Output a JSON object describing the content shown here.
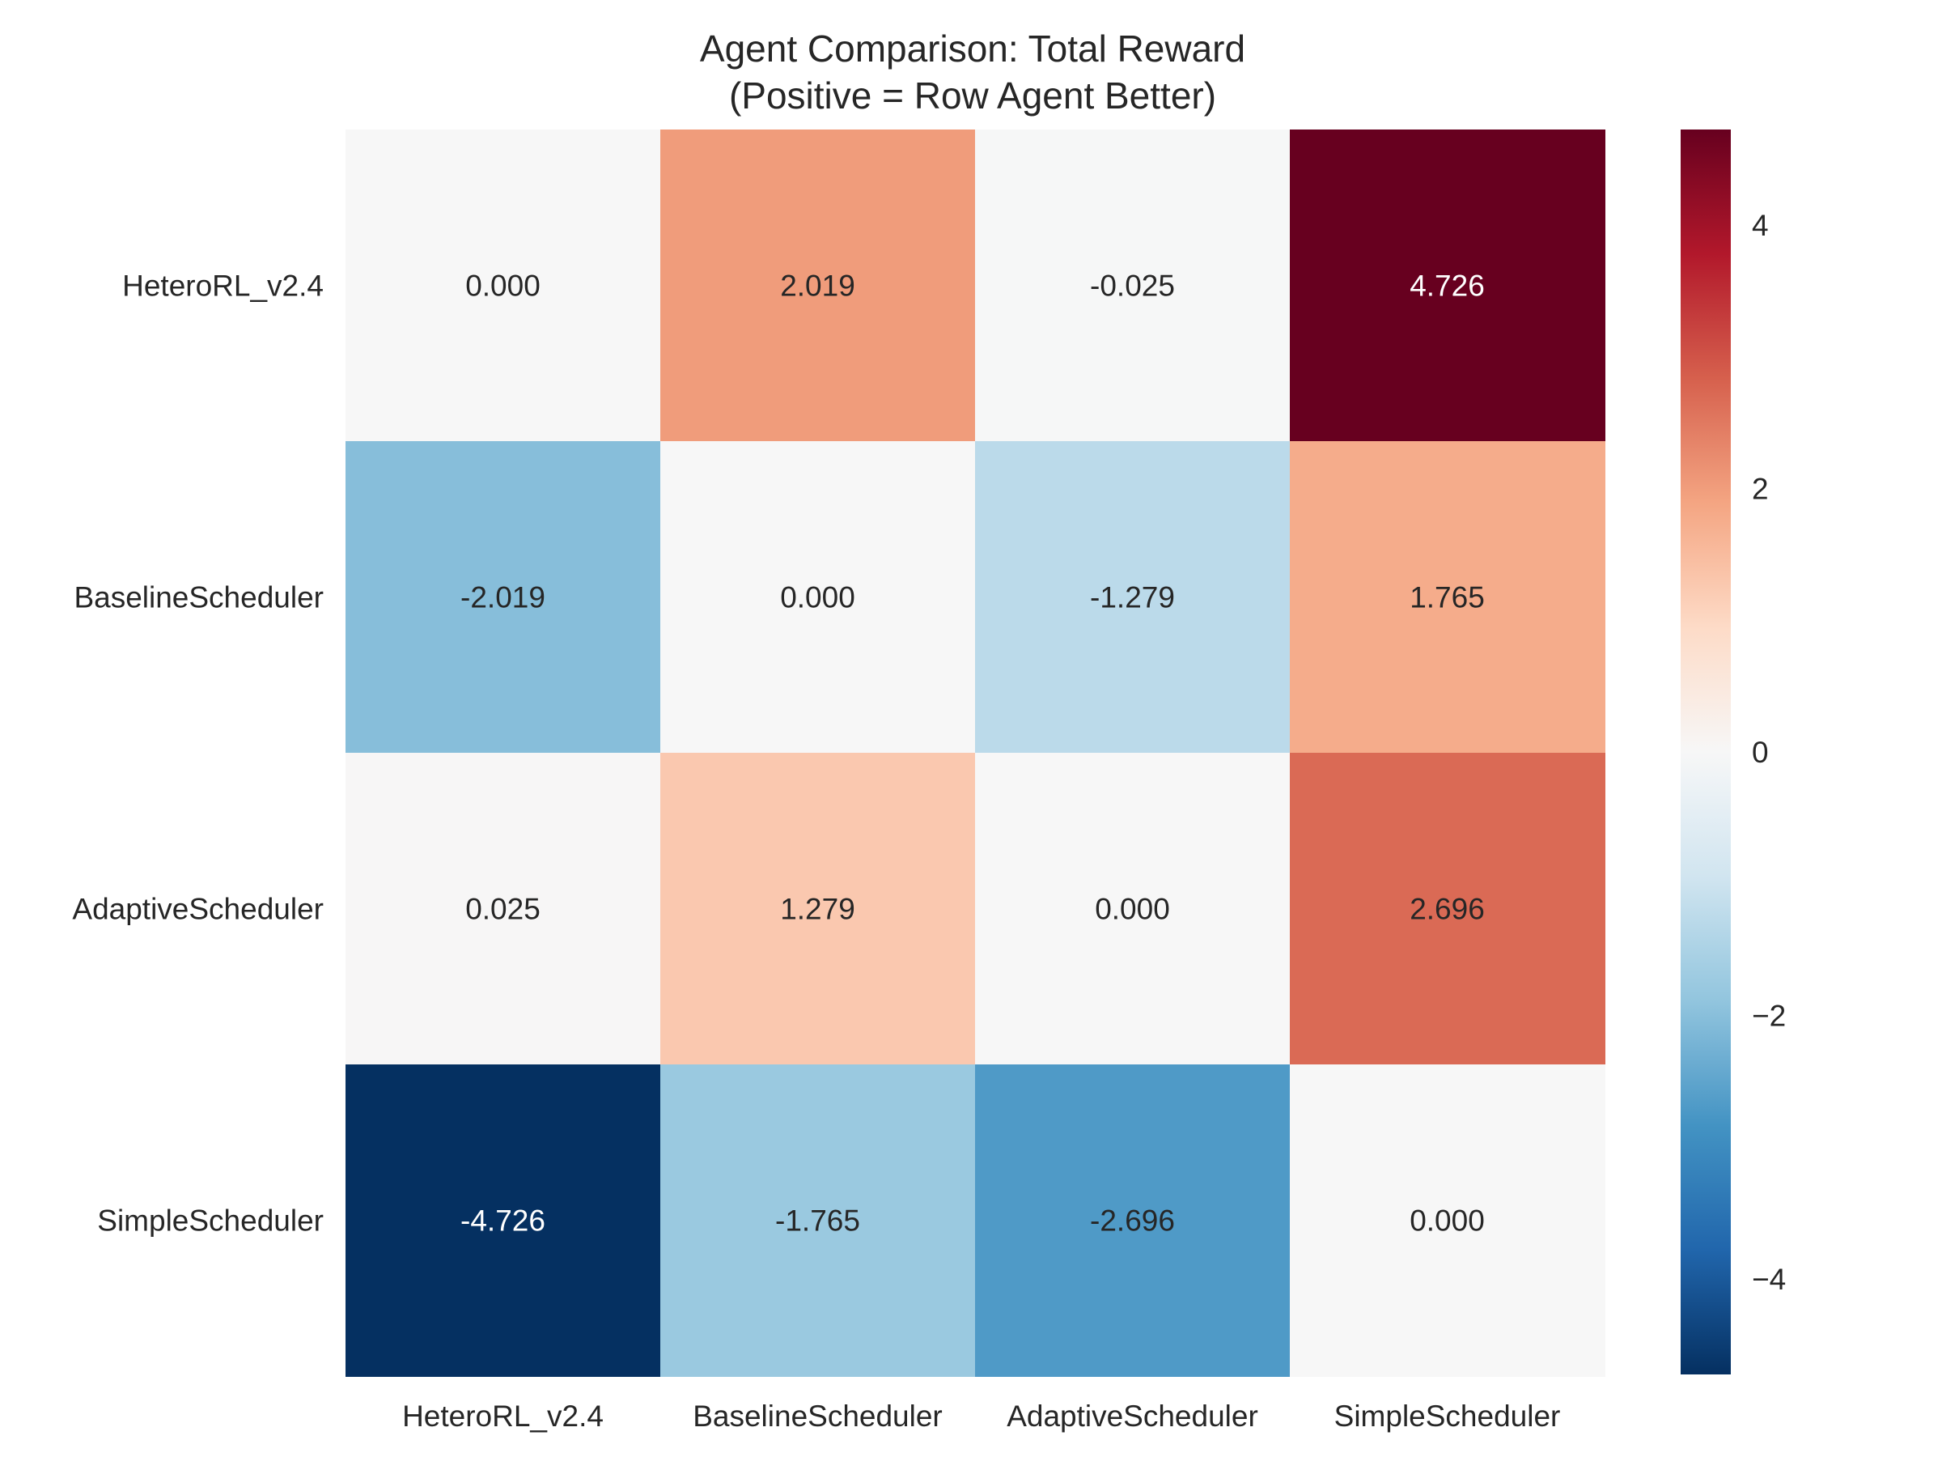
{
  "chart_data": {
    "type": "heatmap",
    "title": "Agent Comparison: Total Reward",
    "subtitle": "(Positive = Row Agent Better)",
    "rows": [
      "HeteroRL_v2.4",
      "BaselineScheduler",
      "AdaptiveScheduler",
      "SimpleScheduler"
    ],
    "columns": [
      "HeteroRL_v2.4",
      "BaselineScheduler",
      "AdaptiveScheduler",
      "SimpleScheduler"
    ],
    "values": [
      [
        0.0,
        2.019,
        -0.025,
        4.726
      ],
      [
        -2.019,
        0.0,
        -1.279,
        1.765
      ],
      [
        0.025,
        1.279,
        0.0,
        2.696
      ],
      [
        -4.726,
        -1.765,
        -2.696,
        0.0
      ]
    ],
    "value_format": "0.000",
    "colormap": "RdBu_r",
    "vmin": -4.726,
    "vmax": 4.726,
    "colorbar": {
      "ticks": [
        4,
        2,
        0,
        -2,
        -4
      ],
      "tick_labels": [
        "4",
        "2",
        "0",
        "−2",
        "−4"
      ],
      "placement": "right"
    },
    "xlabel": "",
    "ylabel": ""
  }
}
